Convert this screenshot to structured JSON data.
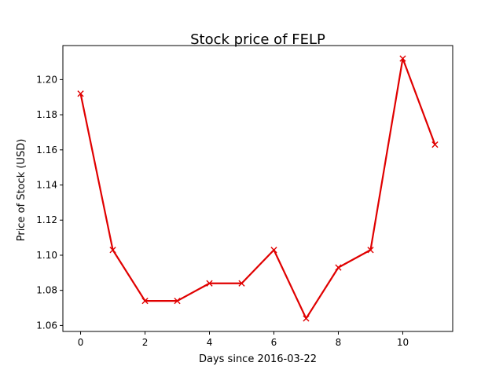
{
  "chart_data": {
    "type": "line",
    "title": "Stock price of FELP",
    "xlabel": "Days since 2016-03-22",
    "ylabel": "Price of Stock (USD)",
    "x": [
      0,
      1,
      2,
      3,
      4,
      5,
      6,
      7,
      8,
      9,
      10,
      11
    ],
    "series": [
      {
        "values": [
          1.192,
          1.103,
          1.074,
          1.074,
          1.084,
          1.084,
          1.103,
          1.064,
          1.093,
          1.103,
          1.212,
          1.163
        ],
        "color": "#e00000",
        "marker": "x"
      }
    ],
    "xlim": [
      -0.55,
      11.55
    ],
    "ylim": [
      1.0566,
      1.2194
    ],
    "xticks": [
      0,
      2,
      4,
      6,
      8,
      10
    ],
    "xtick_labels": [
      "0",
      "2",
      "4",
      "6",
      "8",
      "10"
    ],
    "yticks": [
      1.06,
      1.08,
      1.1,
      1.12,
      1.14,
      1.16,
      1.18,
      1.2
    ],
    "ytick_labels": [
      "1.06",
      "1.08",
      "1.10",
      "1.12",
      "1.14",
      "1.16",
      "1.18",
      "1.20"
    ],
    "grid": false,
    "legend": false
  }
}
